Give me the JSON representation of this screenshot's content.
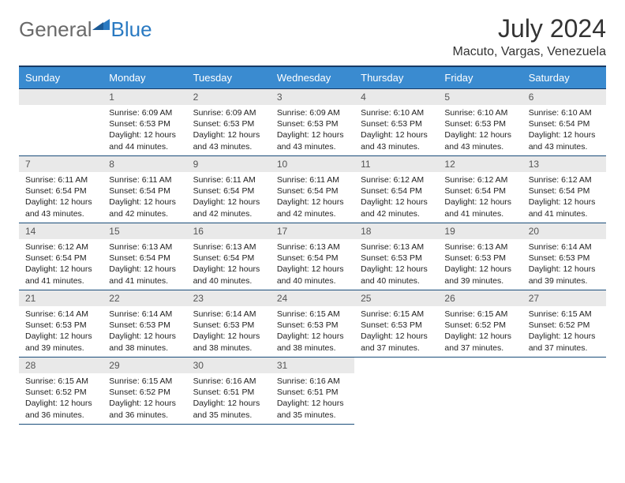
{
  "brand": {
    "text1": "General",
    "text2": "Blue"
  },
  "title": "July 2024",
  "location": "Macuto, Vargas, Venezuela",
  "colors": {
    "header_bg": "#3a8bd0",
    "header_border": "#183a66",
    "daynum_bg": "#e9e9e9",
    "brand_gray": "#6a6a6a",
    "brand_blue": "#2a7ac2"
  },
  "weekdays": [
    "Sunday",
    "Monday",
    "Tuesday",
    "Wednesday",
    "Thursday",
    "Friday",
    "Saturday"
  ],
  "firstDayOffset": 1,
  "days": [
    {
      "n": 1,
      "sr": "6:09 AM",
      "ss": "6:53 PM",
      "dl": "12 hours and 44 minutes."
    },
    {
      "n": 2,
      "sr": "6:09 AM",
      "ss": "6:53 PM",
      "dl": "12 hours and 43 minutes."
    },
    {
      "n": 3,
      "sr": "6:09 AM",
      "ss": "6:53 PM",
      "dl": "12 hours and 43 minutes."
    },
    {
      "n": 4,
      "sr": "6:10 AM",
      "ss": "6:53 PM",
      "dl": "12 hours and 43 minutes."
    },
    {
      "n": 5,
      "sr": "6:10 AM",
      "ss": "6:53 PM",
      "dl": "12 hours and 43 minutes."
    },
    {
      "n": 6,
      "sr": "6:10 AM",
      "ss": "6:54 PM",
      "dl": "12 hours and 43 minutes."
    },
    {
      "n": 7,
      "sr": "6:11 AM",
      "ss": "6:54 PM",
      "dl": "12 hours and 43 minutes."
    },
    {
      "n": 8,
      "sr": "6:11 AM",
      "ss": "6:54 PM",
      "dl": "12 hours and 42 minutes."
    },
    {
      "n": 9,
      "sr": "6:11 AM",
      "ss": "6:54 PM",
      "dl": "12 hours and 42 minutes."
    },
    {
      "n": 10,
      "sr": "6:11 AM",
      "ss": "6:54 PM",
      "dl": "12 hours and 42 minutes."
    },
    {
      "n": 11,
      "sr": "6:12 AM",
      "ss": "6:54 PM",
      "dl": "12 hours and 42 minutes."
    },
    {
      "n": 12,
      "sr": "6:12 AM",
      "ss": "6:54 PM",
      "dl": "12 hours and 41 minutes."
    },
    {
      "n": 13,
      "sr": "6:12 AM",
      "ss": "6:54 PM",
      "dl": "12 hours and 41 minutes."
    },
    {
      "n": 14,
      "sr": "6:12 AM",
      "ss": "6:54 PM",
      "dl": "12 hours and 41 minutes."
    },
    {
      "n": 15,
      "sr": "6:13 AM",
      "ss": "6:54 PM",
      "dl": "12 hours and 41 minutes."
    },
    {
      "n": 16,
      "sr": "6:13 AM",
      "ss": "6:54 PM",
      "dl": "12 hours and 40 minutes."
    },
    {
      "n": 17,
      "sr": "6:13 AM",
      "ss": "6:54 PM",
      "dl": "12 hours and 40 minutes."
    },
    {
      "n": 18,
      "sr": "6:13 AM",
      "ss": "6:53 PM",
      "dl": "12 hours and 40 minutes."
    },
    {
      "n": 19,
      "sr": "6:13 AM",
      "ss": "6:53 PM",
      "dl": "12 hours and 39 minutes."
    },
    {
      "n": 20,
      "sr": "6:14 AM",
      "ss": "6:53 PM",
      "dl": "12 hours and 39 minutes."
    },
    {
      "n": 21,
      "sr": "6:14 AM",
      "ss": "6:53 PM",
      "dl": "12 hours and 39 minutes."
    },
    {
      "n": 22,
      "sr": "6:14 AM",
      "ss": "6:53 PM",
      "dl": "12 hours and 38 minutes."
    },
    {
      "n": 23,
      "sr": "6:14 AM",
      "ss": "6:53 PM",
      "dl": "12 hours and 38 minutes."
    },
    {
      "n": 24,
      "sr": "6:15 AM",
      "ss": "6:53 PM",
      "dl": "12 hours and 38 minutes."
    },
    {
      "n": 25,
      "sr": "6:15 AM",
      "ss": "6:53 PM",
      "dl": "12 hours and 37 minutes."
    },
    {
      "n": 26,
      "sr": "6:15 AM",
      "ss": "6:52 PM",
      "dl": "12 hours and 37 minutes."
    },
    {
      "n": 27,
      "sr": "6:15 AM",
      "ss": "6:52 PM",
      "dl": "12 hours and 37 minutes."
    },
    {
      "n": 28,
      "sr": "6:15 AM",
      "ss": "6:52 PM",
      "dl": "12 hours and 36 minutes."
    },
    {
      "n": 29,
      "sr": "6:15 AM",
      "ss": "6:52 PM",
      "dl": "12 hours and 36 minutes."
    },
    {
      "n": 30,
      "sr": "6:16 AM",
      "ss": "6:51 PM",
      "dl": "12 hours and 35 minutes."
    },
    {
      "n": 31,
      "sr": "6:16 AM",
      "ss": "6:51 PM",
      "dl": "12 hours and 35 minutes."
    }
  ],
  "labels": {
    "sunrise": "Sunrise:",
    "sunset": "Sunset:",
    "daylight": "Daylight:"
  }
}
